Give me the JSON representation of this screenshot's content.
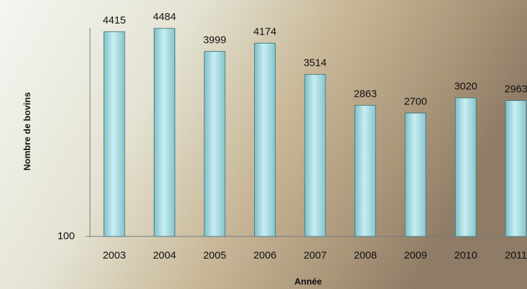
{
  "chart_data": {
    "type": "bar",
    "categories": [
      "2003",
      "2004",
      "2005",
      "2006",
      "2007",
      "2008",
      "2009",
      "2010",
      "2011"
    ],
    "values": [
      4415,
      4484,
      3999,
      4174,
      3514,
      2863,
      2700,
      3020,
      2963
    ],
    "color": "#9fd6dc",
    "ylim": [
      100,
      4500
    ],
    "yticks": [
      100
    ],
    "x_label": "Année",
    "y_label": "Nombre de bovins"
  }
}
